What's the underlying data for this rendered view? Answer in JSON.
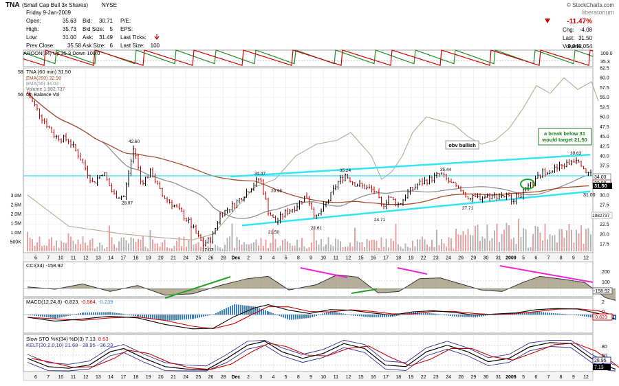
{
  "header": {
    "ticker": "TNA",
    "name": "(Small Cap Bull 3x Shares)",
    "exchange": "NYSE",
    "copyright": "© StockCharts.com",
    "author": "liberatorium",
    "date": "Friday  9-Jan-2009",
    "rows": [
      {
        "k1": "Open:",
        "v1": "35.63",
        "k2": "Bid:",
        "v2": "30.71",
        "k3": "P/E:",
        "v3": ""
      },
      {
        "k1": "High:",
        "v1": "35.73",
        "k2": "Bid Size:",
        "v2": "5",
        "k3": "EPS:",
        "v3": ""
      },
      {
        "k1": "Low:",
        "v1": "31.00",
        "k2": "Ask:",
        "v2": "31.49",
        "k3": "Last Ticks:",
        "v3": ""
      },
      {
        "k1": "Prev Close:",
        "v1": "35.58",
        "k2": "Ask Size:",
        "v2": "6",
        "k3": "Last Size:",
        "v3": "100"
      }
    ],
    "change_pct": "-11.47%",
    "chg_label": "Chg:",
    "chg": "-4.08",
    "last_label": "Last:",
    "last": "31.50",
    "volume_label": "Volume:",
    "volume": "9,945,054"
  },
  "chart_data": [
    {
      "type": "line",
      "title": "AROON(34) Up 35.3 Down 100.0",
      "series": [
        {
          "name": "Up",
          "values": [
            35.3
          ]
        },
        {
          "name": "Down",
          "values": [
            100.0
          ]
        }
      ],
      "ylim": [
        0,
        100
      ],
      "tick_labels": [
        "100.0",
        "35.3"
      ]
    },
    {
      "type": "line",
      "title": "TNA (60 min) 31.50",
      "series": [
        {
          "name": "TNA (60 min)",
          "values": [
            31.5
          ]
        },
        {
          "name": "EMA(200)",
          "values": [
            32.98
          ]
        },
        {
          "name": "EMA(55)",
          "values": [
            34.03
          ]
        },
        {
          "name": "Volume",
          "values": [
            1982737
          ]
        },
        {
          "name": "On Balance Vol",
          "values": []
        }
      ],
      "legend": [
        "TNA (60 min) 31.50",
        "EMA(200) 32.98",
        "EMA(55) 34.03",
        "Volume 1,982,737",
        "On Balance Vol"
      ],
      "ylim": [
        17.5,
        62.5
      ],
      "right_ticks": [
        "62.5",
        "60.0",
        "57.5",
        "55.0",
        "52.5",
        "50.0",
        "47.5",
        "45.0",
        "42.5",
        "40.0",
        "37.5",
        "35.0",
        "32.5",
        "30.0",
        "27.5",
        "25.0",
        "22.5",
        "20.0",
        "17.5"
      ],
      "volume_ticks": [
        "3.0M",
        "2.5M",
        "2.0M",
        "1.5M",
        "1.0M",
        "500K"
      ],
      "left_tags": [
        "58",
        "56"
      ],
      "price_tags": [
        "34.03",
        "32.98",
        "31.50",
        "31.00",
        "1982737"
      ],
      "annotations": [
        {
          "text": "42.60",
          "value": 42.6
        },
        {
          "text": "28.97",
          "value": 28.97
        },
        {
          "text": "34.47",
          "value": 34.47
        },
        {
          "text": "29.95",
          "value": 29.95
        },
        {
          "text": "21.50",
          "value": 21.5
        },
        {
          "text": "22.61",
          "value": 22.61
        },
        {
          "text": "17.07",
          "value": 17.07
        },
        {
          "text": "35.24",
          "value": 35.24
        },
        {
          "text": "24.71",
          "value": 24.71
        },
        {
          "text": "35.44",
          "value": 35.44
        },
        {
          "text": "27.71",
          "value": 27.71
        },
        {
          "text": "39.63",
          "value": 39.63
        },
        {
          "text": "31.00",
          "value": 31.0
        }
      ],
      "notes": [
        "obv bullish",
        "a break below 31\nwould target 21,50"
      ]
    },
    {
      "type": "line",
      "title": "CCI(34) -158.92",
      "series": [
        {
          "name": "CCI(34)",
          "values": [
            -158.92
          ]
        }
      ],
      "ylim": [
        -200,
        200
      ],
      "right_ticks": [
        "200",
        "100",
        "0"
      ],
      "tag": "-158.92"
    },
    {
      "type": "line",
      "title": "MACD(12,24,8) -0.823, -0.584, -0.239",
      "series": [
        {
          "name": "MACD",
          "values": [
            -0.823
          ]
        },
        {
          "name": "Signal",
          "values": [
            -0.584
          ]
        },
        {
          "name": "Histogram",
          "values": [
            -0.239
          ]
        }
      ],
      "right_ticks": [
        "2",
        "0"
      ],
      "tag": "-0.823"
    },
    {
      "type": "line",
      "title": "Slow STO %K(34) %D(3) 7.13, 8.53",
      "title2": "KELT(20,2.0,10) 21.68 - 28.95 - 36.23",
      "series": [
        {
          "name": "%K(34)",
          "values": [
            7.13
          ]
        },
        {
          "name": "%D(3)",
          "values": [
            8.53
          ]
        }
      ],
      "ylim": [
        0,
        100
      ],
      "right_ticks": [
        "80",
        "50",
        "20"
      ],
      "tags": [
        "28.95",
        "7.13"
      ]
    }
  ],
  "x_axis": {
    "labels": [
      "6",
      "7",
      "10",
      "11",
      "12",
      "13",
      "14",
      "17",
      "18",
      "19",
      "20",
      "21",
      "24",
      "25",
      "26",
      "28",
      "Dec",
      "2",
      "3",
      "4",
      "5",
      "8",
      "9",
      "10",
      "11",
      "12",
      "15",
      "16",
      "17",
      "18",
      "19",
      "22",
      "23",
      "24",
      "26",
      "29",
      "30",
      "31",
      "2009",
      "5",
      "6",
      "7",
      "8",
      "9",
      "12"
    ]
  },
  "colors": {
    "up": "#000000",
    "down": "#cc0000",
    "ema200": "#a05030",
    "ema55": "#909090",
    "obv": "#b8a890",
    "channel": "#33e5f2",
    "aroon_up": "#228b22",
    "aroon_down": "#cc0000",
    "cci_fill": "#6b5a3a",
    "macd_hist": "#3a7fc0",
    "stoch_k": "#000000",
    "stoch_d": "#cc0000",
    "kelt": "#2a2a90",
    "magenta": "#ee22dd",
    "green": "#22a020"
  }
}
